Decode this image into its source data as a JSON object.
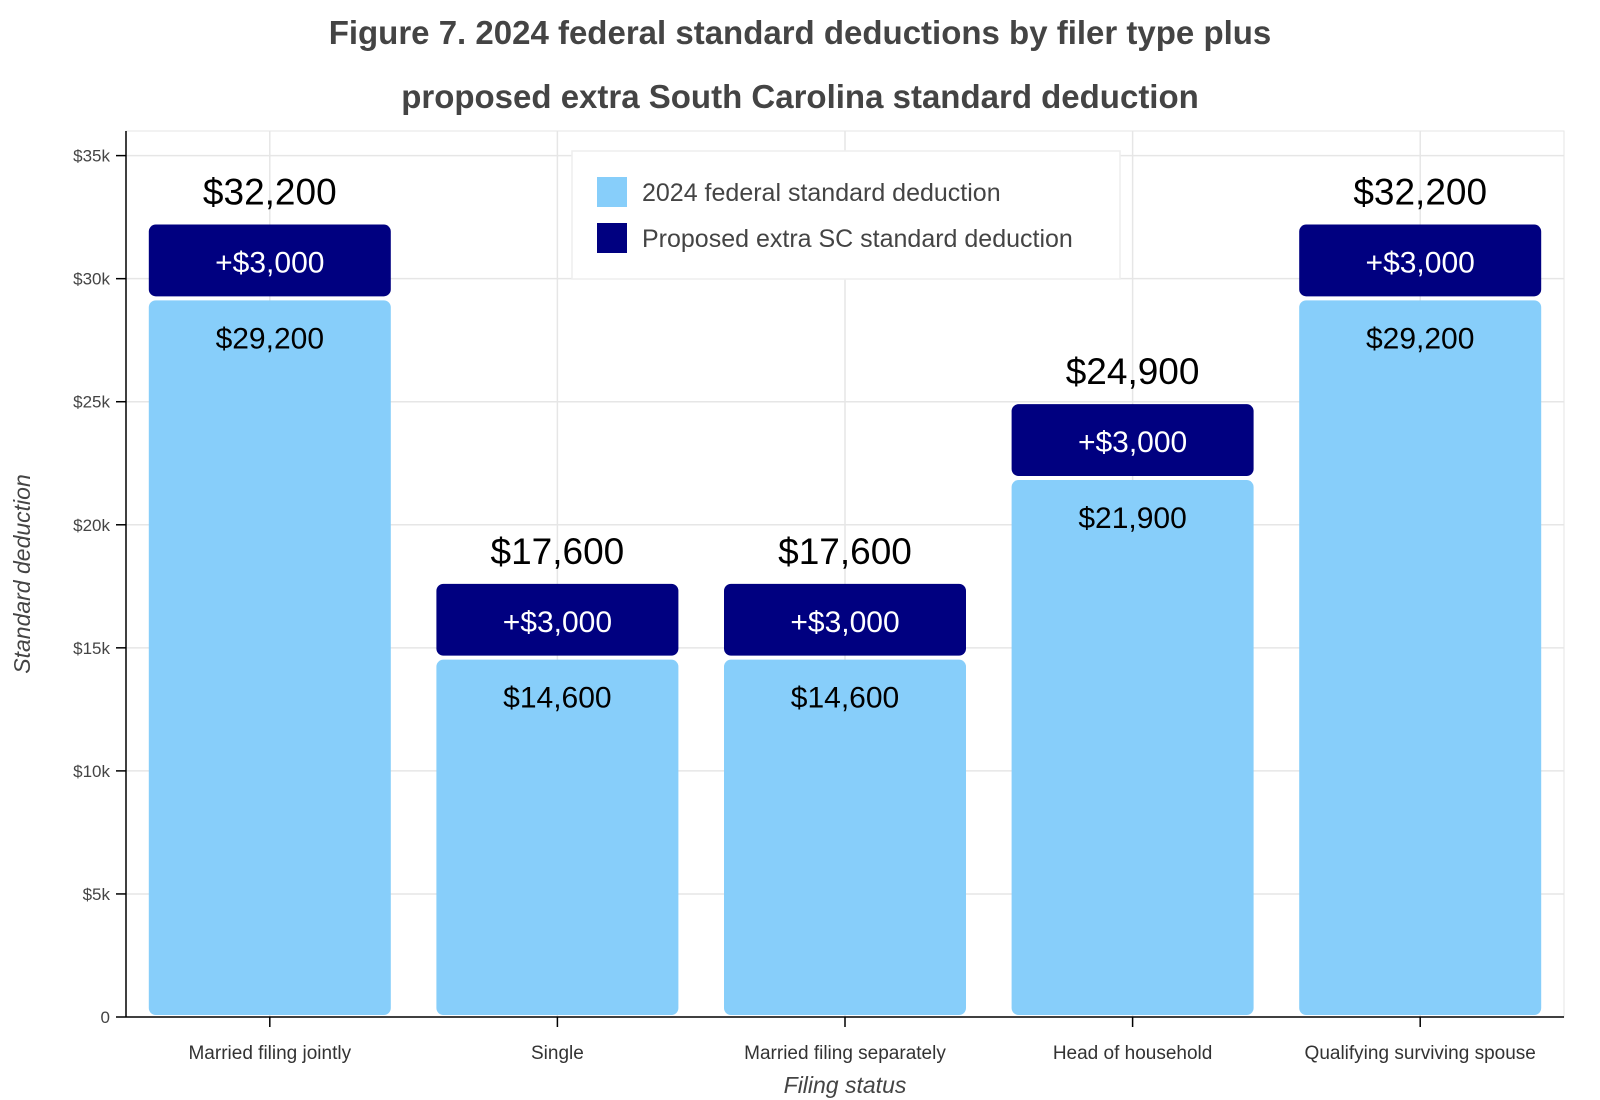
{
  "chart_data": {
    "type": "bar",
    "stacked": true,
    "title_line1": "Figure 7. 2024 federal standard deductions by filer type plus",
    "title_line2": "proposed extra South Carolina standard deduction",
    "xlabel": "Filing status",
    "ylabel": "Standard deduction",
    "categories": [
      "Married filing jointly",
      "Single",
      "Married filing separately",
      "Head of household",
      "Qualifying surviving spouse"
    ],
    "series": [
      {
        "name": "2024 federal standard deduction",
        "color": "#87CEFA",
        "values": [
          29200,
          14600,
          14600,
          21900,
          29200
        ],
        "labels": [
          "$29,200",
          "$14,600",
          "$14,600",
          "$21,900",
          "$29,200"
        ]
      },
      {
        "name": "Proposed extra SC standard deduction",
        "color": "#000080",
        "values": [
          3000,
          3000,
          3000,
          3000,
          3000
        ],
        "labels": [
          "+$3,000",
          "+$3,000",
          "+$3,000",
          "+$3,000",
          "+$3,000"
        ]
      }
    ],
    "totals": [
      "$32,200",
      "$17,600",
      "$17,600",
      "$24,900",
      "$32,200"
    ],
    "ylim": [
      0,
      36000
    ],
    "yticks": [
      0,
      5000,
      10000,
      15000,
      20000,
      25000,
      30000,
      35000
    ],
    "ytick_labels": [
      "0",
      "$5k",
      "$10k",
      "$15k",
      "$20k",
      "$25k",
      "$30k",
      "$35k"
    ],
    "grid": true,
    "legend_position": "top-center"
  }
}
